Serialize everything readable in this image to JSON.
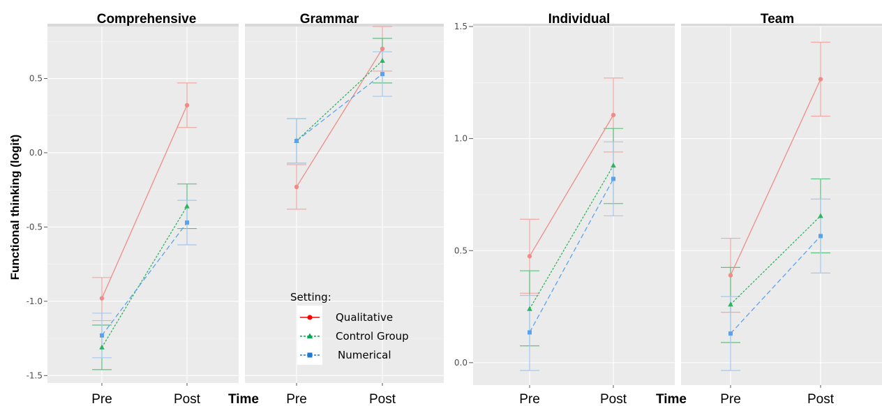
{
  "ylabel": "Functional thinking (logit)",
  "xlabel": "Time",
  "legend": {
    "title": "Setting:",
    "entries": [
      {
        "name": "Qualitative",
        "color": "#ff0000",
        "line": "solid",
        "shape": "circle"
      },
      {
        "name": "Control Group",
        "color": "#00a84f",
        "line": "dashed",
        "shape": "triangle"
      },
      {
        "name": "Numerical",
        "color": "#1f7ad6",
        "line": "dashed",
        "shape": "square"
      }
    ]
  },
  "series_colors": {
    "Qualitative": "#ef8c86",
    "Control Group": "#2fb361",
    "Numerical": "#5aa2ee"
  },
  "errorbar_colors": {
    "Qualitative": "#f3a8a2",
    "Control Group": "#5cc07f",
    "Numerical": "#a4c8f2"
  },
  "chart_data": [
    {
      "type": "line",
      "title": "Comprehensive",
      "categories": [
        "Pre",
        "Post"
      ],
      "yticks": [
        -1.5,
        -1.0,
        -0.5,
        0.0,
        0.5
      ],
      "ytick_labels": [
        "-1.5",
        "-1.0",
        "-0.5",
        "0.0",
        "0.5"
      ],
      "ylim": [
        -1.55,
        0.85
      ],
      "series": [
        {
          "name": "Qualitative",
          "values": [
            -0.98,
            0.32
          ],
          "lower": [
            -1.13,
            0.17
          ],
          "upper": [
            -0.84,
            0.47
          ]
        },
        {
          "name": "Control Group",
          "values": [
            -1.31,
            -0.36
          ],
          "lower": [
            -1.46,
            -0.51
          ],
          "upper": [
            -1.16,
            -0.21
          ]
        },
        {
          "name": "Numerical",
          "values": [
            -1.23,
            -0.47
          ],
          "lower": [
            -1.38,
            -0.62
          ],
          "upper": [
            -1.08,
            -0.32
          ]
        }
      ]
    },
    {
      "type": "line",
      "title": "Grammar",
      "categories": [
        "Pre",
        "Post"
      ],
      "ylim": [
        -1.55,
        0.85
      ],
      "series": [
        {
          "name": "Qualitative",
          "values": [
            -0.23,
            0.7
          ],
          "lower": [
            -0.38,
            0.55
          ],
          "upper": [
            -0.08,
            0.85
          ]
        },
        {
          "name": "Control Group",
          "values": [
            0.08,
            0.62
          ],
          "lower": [
            -0.07,
            0.47
          ],
          "upper": [
            0.23,
            0.77
          ]
        },
        {
          "name": "Numerical",
          "values": [
            0.08,
            0.53
          ],
          "lower": [
            -0.07,
            0.38
          ],
          "upper": [
            0.23,
            0.68
          ]
        }
      ]
    },
    {
      "type": "line",
      "title": "Individual",
      "categories": [
        "Pre",
        "Post"
      ],
      "yticks": [
        0.0,
        0.5,
        1.0,
        1.5
      ],
      "ytick_labels": [
        "0.0",
        "0.5",
        "1.0",
        "1.5"
      ],
      "ylim": [
        -0.1,
        1.5
      ],
      "series": [
        {
          "name": "Qualitative",
          "values": [
            0.475,
            1.105
          ],
          "lower": [
            0.31,
            0.94
          ],
          "upper": [
            0.64,
            1.27
          ]
        },
        {
          "name": "Control Group",
          "values": [
            0.24,
            0.88
          ],
          "lower": [
            0.075,
            0.71
          ],
          "upper": [
            0.41,
            1.045
          ]
        },
        {
          "name": "Numerical",
          "values": [
            0.135,
            0.82
          ],
          "lower": [
            -0.035,
            0.655
          ],
          "upper": [
            0.3,
            0.985
          ]
        }
      ]
    },
    {
      "type": "line",
      "title": "Team",
      "categories": [
        "Pre",
        "Post"
      ],
      "ylim": [
        -0.1,
        1.5
      ],
      "series": [
        {
          "name": "Qualitative",
          "values": [
            0.39,
            1.265
          ],
          "lower": [
            0.225,
            1.1
          ],
          "upper": [
            0.555,
            1.43
          ]
        },
        {
          "name": "Control Group",
          "values": [
            0.26,
            0.655
          ],
          "lower": [
            0.09,
            0.49
          ],
          "upper": [
            0.425,
            0.82
          ]
        },
        {
          "name": "Numerical",
          "values": [
            0.13,
            0.565
          ],
          "lower": [
            -0.035,
            0.4
          ],
          "upper": [
            0.295,
            0.73
          ]
        }
      ]
    }
  ]
}
